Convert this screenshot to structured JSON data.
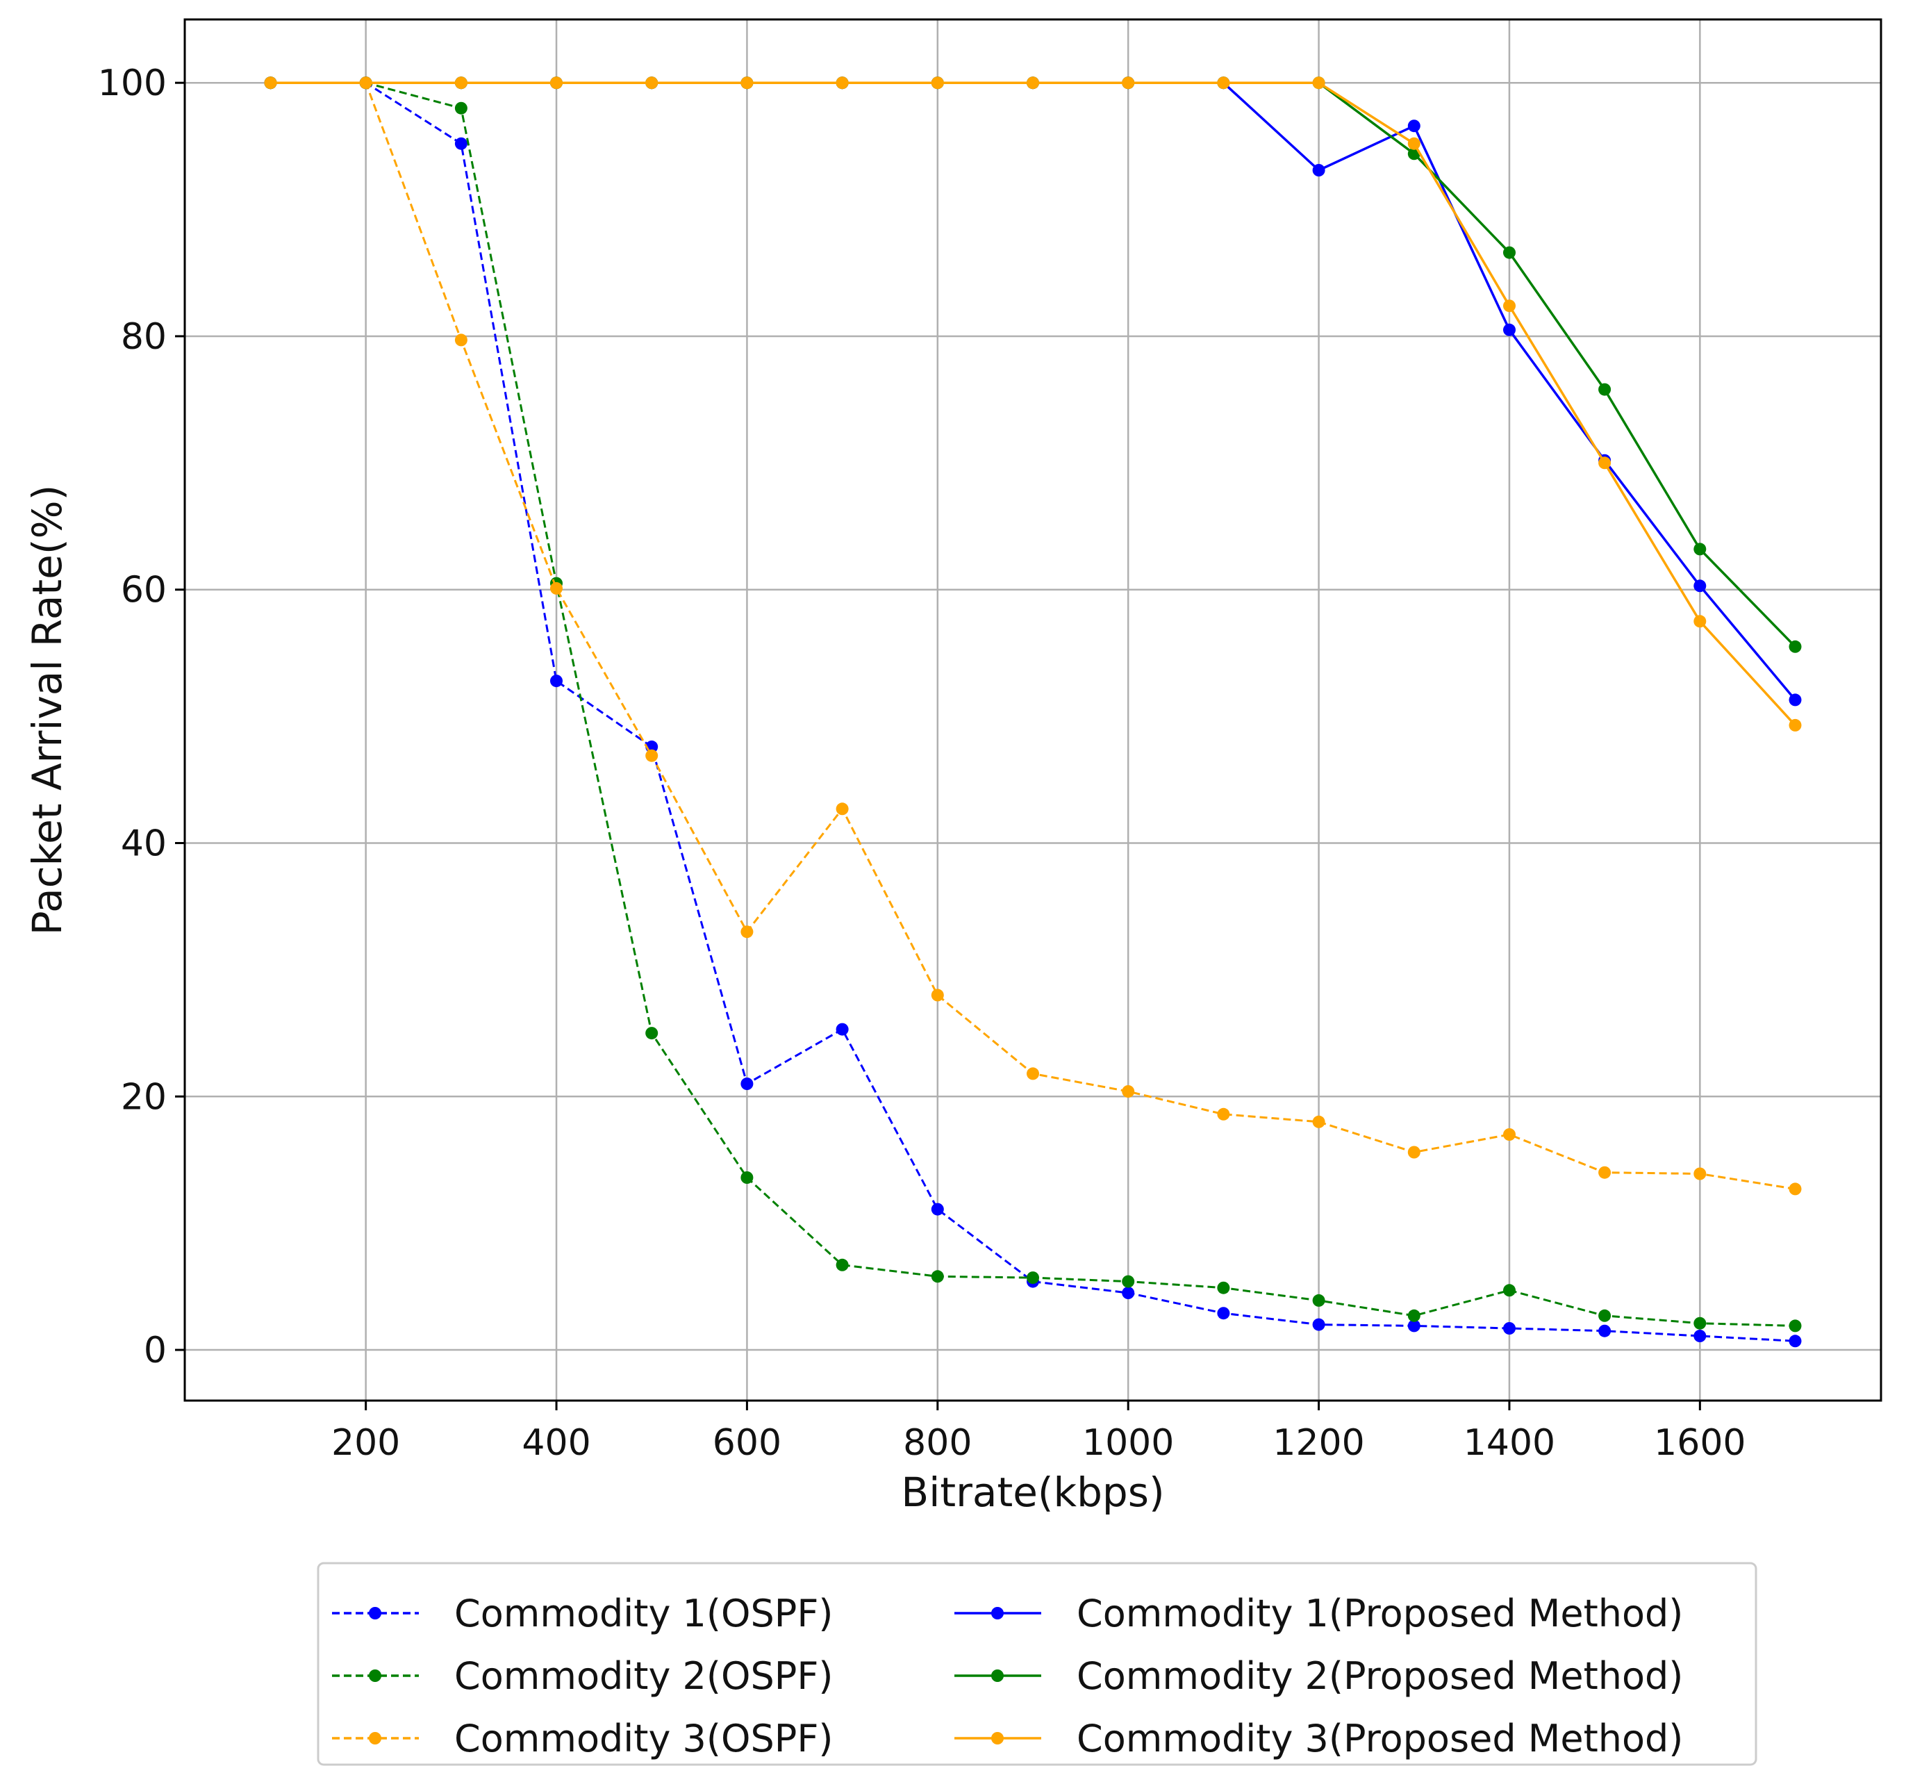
{
  "chart_data": {
    "type": "line",
    "title": "",
    "xlabel": "Bitrate(kbps)",
    "ylabel": "Packet Arrival Rate(%)",
    "xlim": [
      10,
      1790
    ],
    "ylim": [
      -4,
      105
    ],
    "xticks": [
      200,
      400,
      600,
      800,
      1000,
      1200,
      1400,
      1600
    ],
    "yticks": [
      0,
      20,
      40,
      60,
      80,
      100
    ],
    "grid": true,
    "legend_position": "below-center",
    "x": [
      100,
      200,
      300,
      400,
      500,
      600,
      700,
      800,
      900,
      1000,
      1100,
      1200,
      1300,
      1400,
      1500,
      1600,
      1700
    ],
    "series": [
      {
        "name": "Commodity 1(OSPF)",
        "color": "#0000ff",
        "dashed": true,
        "values": [
          100,
          100,
          95.2,
          52.8,
          47.6,
          21.0,
          25.3,
          11.1,
          5.4,
          4.5,
          2.9,
          2.0,
          1.9,
          1.7,
          1.5,
          1.1,
          0.7
        ]
      },
      {
        "name": "Commodity 2(OSPF)",
        "color": "#008000",
        "dashed": true,
        "values": [
          100,
          100,
          98.0,
          60.5,
          25.0,
          13.6,
          6.7,
          5.8,
          5.7,
          5.4,
          4.9,
          3.9,
          2.7,
          4.7,
          2.7,
          2.1,
          1.9
        ]
      },
      {
        "name": "Commodity 3(OSPF)",
        "color": "#ffa500",
        "dashed": true,
        "values": [
          100,
          100,
          79.7,
          60.1,
          46.9,
          33.0,
          42.7,
          28.0,
          21.8,
          20.4,
          18.6,
          18.0,
          15.6,
          17.0,
          14.0,
          13.9,
          12.7
        ]
      },
      {
        "name": "Commodity 1(Proposed Method)",
        "color": "#0000ff",
        "dashed": false,
        "values": [
          100,
          100,
          100,
          100,
          100,
          100,
          100,
          100,
          100,
          100,
          100,
          93.1,
          96.6,
          80.5,
          70.2,
          60.3,
          51.3
        ]
      },
      {
        "name": "Commodity 2(Proposed Method)",
        "color": "#008000",
        "dashed": false,
        "values": [
          100,
          100,
          100,
          100,
          100,
          100,
          100,
          100,
          100,
          100,
          100,
          100,
          94.4,
          86.6,
          75.8,
          63.2,
          55.5
        ]
      },
      {
        "name": "Commodity 3(Proposed Method)",
        "color": "#ffa500",
        "dashed": false,
        "values": [
          100,
          100,
          100,
          100,
          100,
          100,
          100,
          100,
          100,
          100,
          100,
          100,
          95.2,
          82.4,
          70.0,
          57.5,
          49.3
        ]
      }
    ]
  }
}
